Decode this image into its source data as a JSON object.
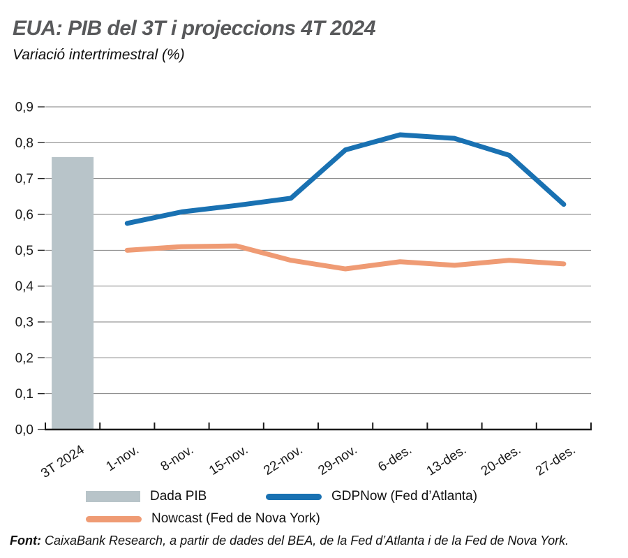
{
  "header": {
    "title": "EUA: PIB del 3T i projeccions 4T 2024",
    "subtitle": "Variació intertrimestral (%)"
  },
  "chart_data": {
    "type": "bar",
    "note": "combined bar + line chart",
    "categories": [
      "3T 2024",
      "1-nov.",
      "8-nov.",
      "15-nov.",
      "22-nov.",
      "29-nov.",
      "6-des.",
      "13-des.",
      "20-des.",
      "27-des."
    ],
    "y_axis": {
      "min": 0,
      "max": 0.9,
      "step": 0.1,
      "tick_labels": [
        "0,0",
        "0,1",
        "0,2",
        "0,3",
        "0,4",
        "0,5",
        "0,6",
        "0,7",
        "0,8",
        "0,9"
      ]
    },
    "grid": true,
    "legend_position": "bottom",
    "series": [
      {
        "name": "Dada PIB",
        "type": "bar",
        "color": "#b8c4c9",
        "values": [
          0.76,
          null,
          null,
          null,
          null,
          null,
          null,
          null,
          null,
          null
        ]
      },
      {
        "name": "GDPNow (Fed d’Atlanta)",
        "type": "line",
        "color": "#1971b2",
        "values": [
          null,
          0.575,
          0.607,
          0.625,
          0.645,
          0.78,
          0.822,
          0.812,
          0.765,
          0.628
        ]
      },
      {
        "name": "Nowcast (Fed de Nova York)",
        "type": "line",
        "color": "#ef9b74",
        "values": [
          null,
          0.5,
          0.51,
          0.512,
          0.472,
          0.448,
          0.468,
          0.458,
          0.472,
          0.462
        ]
      }
    ]
  },
  "legend": {
    "items": [
      {
        "label": "Dada PIB",
        "swatch": "bar",
        "series": 0
      },
      {
        "label": "GDPNow (Fed d’Atlanta)",
        "swatch": "line",
        "series": 1
      },
      {
        "label": "Nowcast (Fed de Nova York)",
        "swatch": "line",
        "series": 2
      }
    ]
  },
  "footer": {
    "prefix": "Font:",
    "text": " CaixaBank Research, a partir de dades del BEA, de la Fed d’Atlanta i de la Fed de Nova York."
  },
  "colors": {
    "title": "#58595b",
    "gridline": "#7f7f7f",
    "axis": "#1a1a1a",
    "bar": "#b8c4c9",
    "gdpnow_line": "#1971b2",
    "nowcast_line": "#ef9b74"
  }
}
